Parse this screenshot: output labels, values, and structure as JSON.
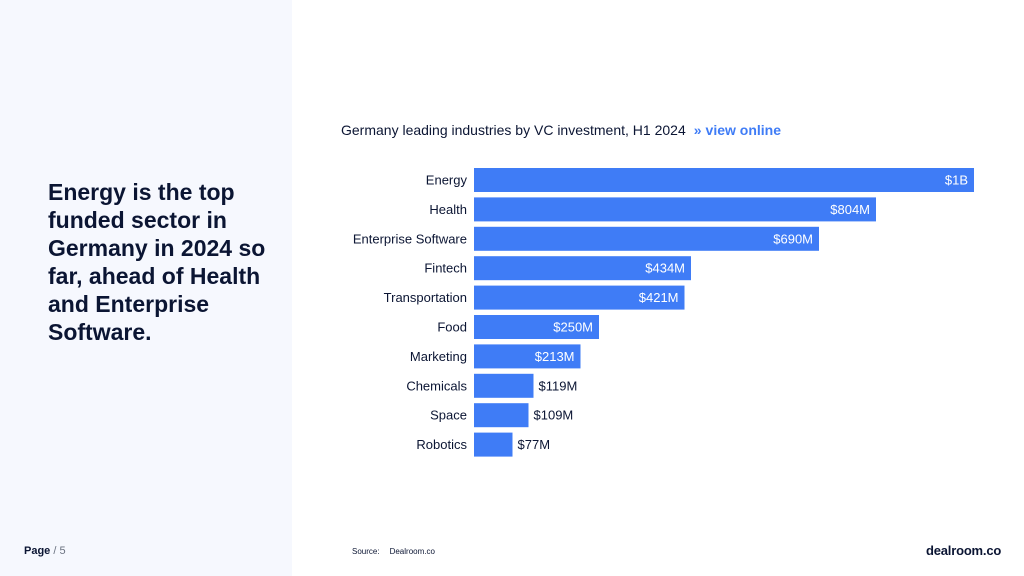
{
  "headline": "Energy is the top funded sector in Germany in 2024 so far, ahead of Health and Enterprise Software.",
  "page": {
    "label": "Page",
    "separator": "/",
    "number": "5"
  },
  "chart_header": {
    "title": "Germany leading industries by VC investment, H1 2024",
    "arrow": "»",
    "link": "view online"
  },
  "source": {
    "label": "Source:",
    "value": "Dealroom.co"
  },
  "logo": "dealroom.co",
  "colors": {
    "bar": "#3f7cf6",
    "text": "#0b1533",
    "panel": "#f6f8fe"
  },
  "chart_data": {
    "type": "bar",
    "orientation": "horizontal",
    "title": "Germany leading industries by VC investment, H1 2024",
    "unit": "USD millions",
    "xlim": [
      0,
      1000
    ],
    "categories": [
      "Energy",
      "Health",
      "Enterprise Software",
      "Fintech",
      "Transportation",
      "Food",
      "Marketing",
      "Chemicals",
      "Space",
      "Robotics"
    ],
    "values": [
      1000,
      804,
      690,
      434,
      421,
      250,
      213,
      119,
      109,
      77
    ],
    "labels": [
      "$1B",
      "$804M",
      "$690M",
      "$434M",
      "$421M",
      "$250M",
      "$213M",
      "$119M",
      "$109M",
      "$77M"
    ]
  }
}
